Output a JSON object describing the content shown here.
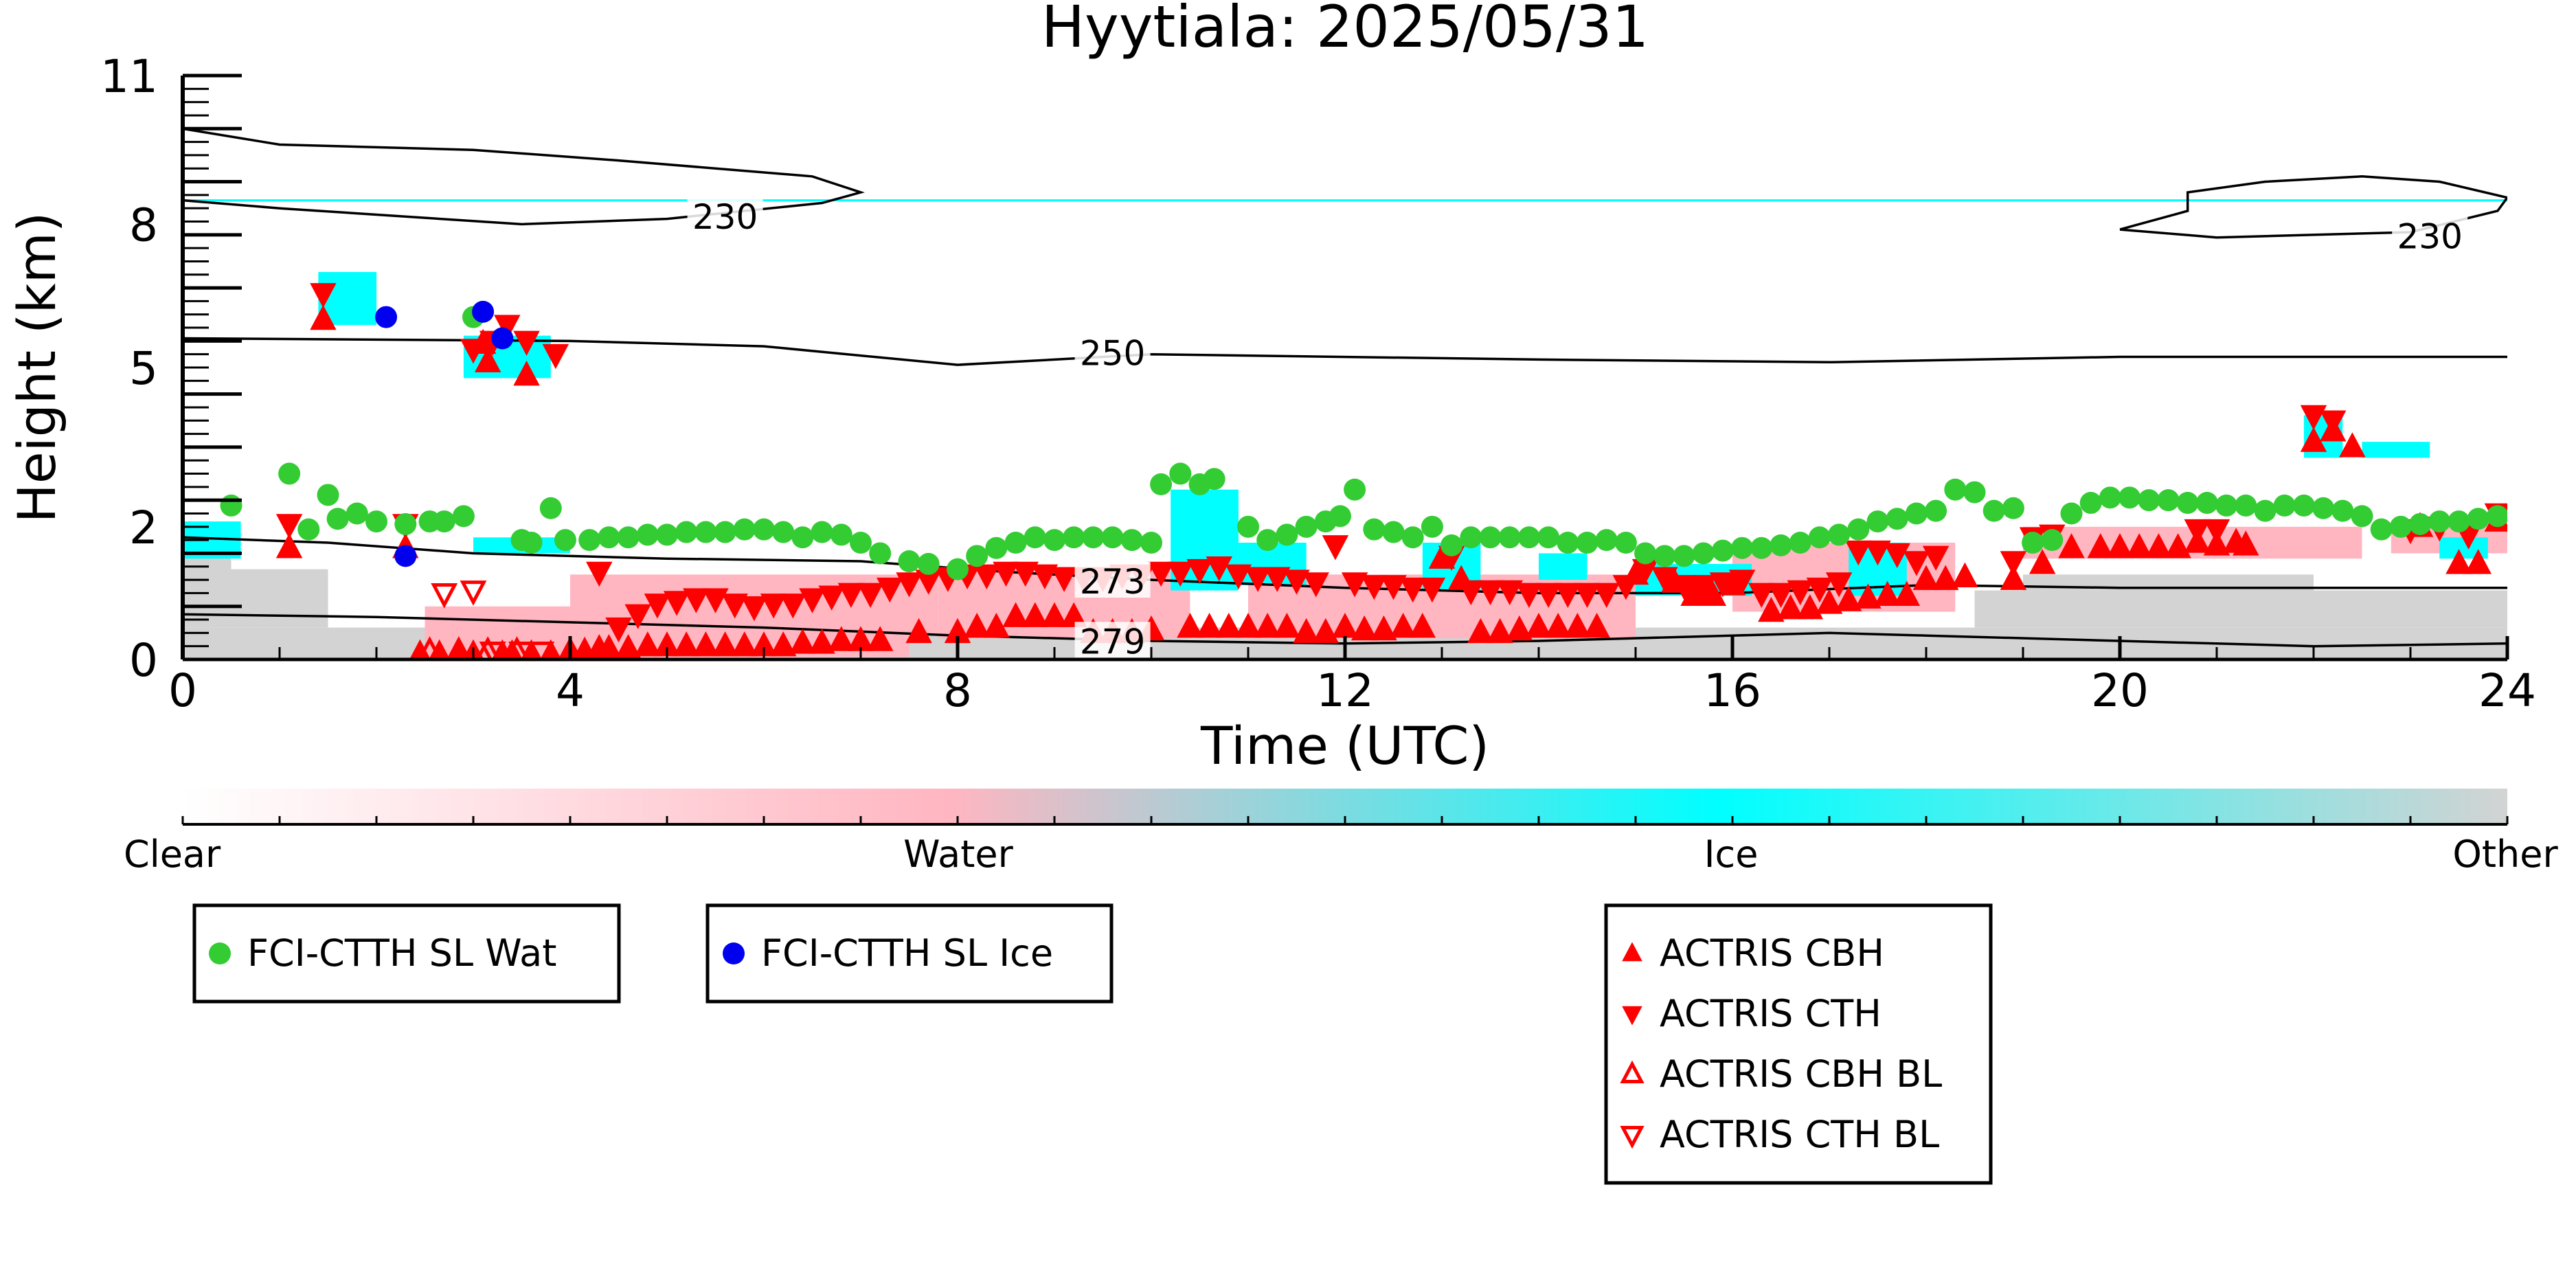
{
  "chart_data": {
    "type": "scatter",
    "title": "Hyytiala: 2025/05/31",
    "xlabel": "Time (UTC)",
    "ylabel": "Height (km)",
    "xlim": [
      0,
      24
    ],
    "ylim": [
      0,
      11
    ],
    "x_ticks": [
      0,
      4,
      8,
      12,
      16,
      20,
      24
    ],
    "y_tick_labels": [
      {
        "value": 0,
        "label": "0"
      },
      {
        "value": 2.5,
        "label": "2"
      },
      {
        "value": 5.5,
        "label": "5"
      },
      {
        "value": 8.2,
        "label": "8"
      },
      {
        "value": 11,
        "label": "11"
      }
    ],
    "colorbar": {
      "labels": [
        "Clear",
        "Water",
        "Ice",
        "Other"
      ],
      "colors": [
        "#ffffff",
        "#ffb6c1",
        "#00ffff",
        "#d3d3d3"
      ]
    },
    "series_colors": {
      "wat": "#33cc33",
      "ice": "#0000ee",
      "actris": "#ff0000",
      "contour": "#000000"
    },
    "contours": [
      {
        "label": "230",
        "label_pos": {
          "x": 5.6,
          "y": 8.32
        },
        "points": [
          [
            0,
            10.0
          ],
          [
            1,
            9.7
          ],
          [
            3,
            9.6
          ],
          [
            4.5,
            9.4
          ],
          [
            6.5,
            9.1
          ],
          [
            7,
            8.8
          ],
          [
            6.6,
            8.6
          ],
          [
            5,
            8.3
          ],
          [
            3.5,
            8.2
          ],
          [
            1,
            8.5
          ],
          [
            0,
            8.65
          ]
        ]
      },
      {
        "label": "230",
        "label_pos": {
          "x": 23.2,
          "y": 7.95
        },
        "points": [
          [
            20,
            8.1
          ],
          [
            20.7,
            8.45
          ],
          [
            20.7,
            8.8
          ],
          [
            21.5,
            9.0
          ],
          [
            22.5,
            9.1
          ],
          [
            23.3,
            9.0
          ],
          [
            24,
            8.7
          ],
          [
            23.9,
            8.45
          ],
          [
            23,
            8.05
          ],
          [
            21,
            7.95
          ],
          [
            20,
            8.1
          ]
        ]
      },
      {
        "label": "250",
        "label_pos": {
          "x": 9.6,
          "y": 5.75
        },
        "points": [
          [
            0,
            6.05
          ],
          [
            4,
            6.0
          ],
          [
            6,
            5.9
          ],
          [
            8,
            5.55
          ],
          [
            10,
            5.75
          ],
          [
            14,
            5.65
          ],
          [
            17,
            5.6
          ],
          [
            20,
            5.7
          ],
          [
            24,
            5.7
          ]
        ]
      },
      {
        "label": "273",
        "label_pos": {
          "x": 9.6,
          "y": 1.45
        },
        "points": [
          [
            0,
            2.3
          ],
          [
            1.5,
            2.2
          ],
          [
            3,
            2.0
          ],
          [
            5,
            1.9
          ],
          [
            7,
            1.85
          ],
          [
            8.5,
            1.65
          ],
          [
            10,
            1.5
          ],
          [
            12,
            1.35
          ],
          [
            14,
            1.25
          ],
          [
            16,
            1.25
          ],
          [
            18,
            1.4
          ],
          [
            20,
            1.35
          ],
          [
            22,
            1.35
          ],
          [
            24,
            1.35
          ]
        ]
      },
      {
        "label": "279",
        "label_pos": {
          "x": 9.6,
          "y": 0.32
        },
        "points": [
          [
            0,
            0.85
          ],
          [
            2,
            0.8
          ],
          [
            4,
            0.7
          ],
          [
            6,
            0.6
          ],
          [
            8,
            0.45
          ],
          [
            10,
            0.35
          ],
          [
            12,
            0.3
          ],
          [
            14,
            0.35
          ],
          [
            16,
            0.45
          ],
          [
            17,
            0.5
          ],
          [
            18,
            0.45
          ],
          [
            20,
            0.35
          ],
          [
            22,
            0.25
          ],
          [
            24,
            0.3
          ]
        ]
      }
    ],
    "legends": {
      "legend1": [
        {
          "label": "FCI-CTTH SL Wat",
          "marker": "circle",
          "color": "#33cc33"
        }
      ],
      "legend2": [
        {
          "label": "FCI-CTTH SL Ice",
          "marker": "circle",
          "color": "#0000ee"
        }
      ],
      "legend3": [
        {
          "label": "ACTRIS CBH",
          "marker": "triangle-up",
          "color": "#ff0000"
        },
        {
          "label": "ACTRIS CTH",
          "marker": "triangle-down",
          "color": "#ff0000"
        },
        {
          "label": "ACTRIS CBH BL",
          "marker": "triangle-up-open",
          "color": "#ff0000"
        },
        {
          "label": "ACTRIS CTH BL",
          "marker": "triangle-down-open",
          "color": "#ff0000"
        }
      ]
    },
    "fci_ctth_sl_wat": [
      [
        0.5,
        2.9
      ],
      [
        1.1,
        3.5
      ],
      [
        1.3,
        2.45
      ],
      [
        1.5,
        3.1
      ],
      [
        1.6,
        2.65
      ],
      [
        1.8,
        2.75
      ],
      [
        2.0,
        2.6
      ],
      [
        2.3,
        2.55
      ],
      [
        2.55,
        2.6
      ],
      [
        2.7,
        2.6
      ],
      [
        2.9,
        2.7
      ],
      [
        3.0,
        6.45
      ],
      [
        3.5,
        2.25
      ],
      [
        3.6,
        2.2
      ],
      [
        3.8,
        2.85
      ],
      [
        3.95,
        2.25
      ],
      [
        4.2,
        2.25
      ],
      [
        4.4,
        2.3
      ],
      [
        4.6,
        2.3
      ],
      [
        4.8,
        2.35
      ],
      [
        5.0,
        2.35
      ],
      [
        5.2,
        2.4
      ],
      [
        5.4,
        2.4
      ],
      [
        5.6,
        2.4
      ],
      [
        5.8,
        2.45
      ],
      [
        6.0,
        2.45
      ],
      [
        6.2,
        2.4
      ],
      [
        6.4,
        2.3
      ],
      [
        6.6,
        2.4
      ],
      [
        6.8,
        2.35
      ],
      [
        7.0,
        2.2
      ],
      [
        7.2,
        2.0
      ],
      [
        7.5,
        1.85
      ],
      [
        7.7,
        1.8
      ],
      [
        8.0,
        1.7
      ],
      [
        8.2,
        1.95
      ],
      [
        8.4,
        2.1
      ],
      [
        8.6,
        2.2
      ],
      [
        8.8,
        2.3
      ],
      [
        9.0,
        2.25
      ],
      [
        9.2,
        2.3
      ],
      [
        9.4,
        2.3
      ],
      [
        9.6,
        2.3
      ],
      [
        9.8,
        2.25
      ],
      [
        10.0,
        2.2
      ],
      [
        10.1,
        3.3
      ],
      [
        10.3,
        3.5
      ],
      [
        10.5,
        3.3
      ],
      [
        10.65,
        3.4
      ],
      [
        11.0,
        2.5
      ],
      [
        11.2,
        2.25
      ],
      [
        11.4,
        2.35
      ],
      [
        11.6,
        2.5
      ],
      [
        11.8,
        2.6
      ],
      [
        11.95,
        2.7
      ],
      [
        12.1,
        3.2
      ],
      [
        12.3,
        2.45
      ],
      [
        12.5,
        2.4
      ],
      [
        12.7,
        2.3
      ],
      [
        12.9,
        2.5
      ],
      [
        13.1,
        2.15
      ],
      [
        13.3,
        2.3
      ],
      [
        13.5,
        2.3
      ],
      [
        13.7,
        2.3
      ],
      [
        13.9,
        2.3
      ],
      [
        14.1,
        2.3
      ],
      [
        14.3,
        2.2
      ],
      [
        14.5,
        2.2
      ],
      [
        14.7,
        2.25
      ],
      [
        14.9,
        2.2
      ],
      [
        15.1,
        2.0
      ],
      [
        15.3,
        1.95
      ],
      [
        15.5,
        1.95
      ],
      [
        15.7,
        2.0
      ],
      [
        15.9,
        2.05
      ],
      [
        16.1,
        2.1
      ],
      [
        16.3,
        2.1
      ],
      [
        16.5,
        2.15
      ],
      [
        16.7,
        2.2
      ],
      [
        16.9,
        2.3
      ],
      [
        17.1,
        2.35
      ],
      [
        17.3,
        2.45
      ],
      [
        17.5,
        2.6
      ],
      [
        17.7,
        2.65
      ],
      [
        17.9,
        2.75
      ],
      [
        18.1,
        2.8
      ],
      [
        18.3,
        3.2
      ],
      [
        18.5,
        3.15
      ],
      [
        18.7,
        2.8
      ],
      [
        18.9,
        2.85
      ],
      [
        19.1,
        2.2
      ],
      [
        19.3,
        2.25
      ],
      [
        19.5,
        2.75
      ],
      [
        19.7,
        2.95
      ],
      [
        19.9,
        3.05
      ],
      [
        20.1,
        3.05
      ],
      [
        20.3,
        3.0
      ],
      [
        20.5,
        3.0
      ],
      [
        20.7,
        2.95
      ],
      [
        20.9,
        2.95
      ],
      [
        21.1,
        2.9
      ],
      [
        21.3,
        2.9
      ],
      [
        21.5,
        2.8
      ],
      [
        21.7,
        2.9
      ],
      [
        21.9,
        2.9
      ],
      [
        22.1,
        2.85
      ],
      [
        22.3,
        2.8
      ],
      [
        22.5,
        2.7
      ],
      [
        22.7,
        2.45
      ],
      [
        22.9,
        2.5
      ],
      [
        23.1,
        2.55
      ],
      [
        23.3,
        2.6
      ],
      [
        23.5,
        2.6
      ],
      [
        23.7,
        2.65
      ],
      [
        23.9,
        2.7
      ]
    ],
    "fci_ctth_sl_ice": [
      [
        2.1,
        6.45
      ],
      [
        2.3,
        1.95
      ],
      [
        3.1,
        6.55
      ],
      [
        3.3,
        6.05
      ]
    ],
    "actris_cbh": [
      [
        1.1,
        2.1
      ],
      [
        1.45,
        6.4
      ],
      [
        2.3,
        2.1
      ],
      [
        2.45,
        0.1
      ],
      [
        2.65,
        0.1
      ],
      [
        2.85,
        0.1
      ],
      [
        3.0,
        0.1
      ],
      [
        3.1,
        5.95
      ],
      [
        3.15,
        5.6
      ],
      [
        3.3,
        0.1
      ],
      [
        3.4,
        0.1
      ],
      [
        3.55,
        5.35
      ],
      [
        3.6,
        0.1
      ],
      [
        3.8,
        0.1
      ],
      [
        4.0,
        0.15
      ],
      [
        4.15,
        0.15
      ],
      [
        4.3,
        0.2
      ],
      [
        4.4,
        0.2
      ],
      [
        4.6,
        0.2
      ],
      [
        4.8,
        0.25
      ],
      [
        5.0,
        0.25
      ],
      [
        5.2,
        0.25
      ],
      [
        5.4,
        0.25
      ],
      [
        5.6,
        0.25
      ],
      [
        5.8,
        0.25
      ],
      [
        6.0,
        0.25
      ],
      [
        6.2,
        0.25
      ],
      [
        6.4,
        0.3
      ],
      [
        6.6,
        0.3
      ],
      [
        6.8,
        0.35
      ],
      [
        7.0,
        0.35
      ],
      [
        7.2,
        0.35
      ],
      [
        7.6,
        0.5
      ],
      [
        8.0,
        0.5
      ],
      [
        8.2,
        0.6
      ],
      [
        8.4,
        0.6
      ],
      [
        8.6,
        0.8
      ],
      [
        8.8,
        0.8
      ],
      [
        9.0,
        0.8
      ],
      [
        9.2,
        0.8
      ],
      [
        9.4,
        0.5
      ],
      [
        9.6,
        0.5
      ],
      [
        9.8,
        0.5
      ],
      [
        10.0,
        0.55
      ],
      [
        10.4,
        0.6
      ],
      [
        10.6,
        0.6
      ],
      [
        10.8,
        0.6
      ],
      [
        11.0,
        0.6
      ],
      [
        11.2,
        0.6
      ],
      [
        11.4,
        0.6
      ],
      [
        11.6,
        0.5
      ],
      [
        11.8,
        0.5
      ],
      [
        12.0,
        0.6
      ],
      [
        12.2,
        0.55
      ],
      [
        12.4,
        0.55
      ],
      [
        12.6,
        0.6
      ],
      [
        12.8,
        0.6
      ],
      [
        13.0,
        1.9
      ],
      [
        13.2,
        1.5
      ],
      [
        13.4,
        0.5
      ],
      [
        13.6,
        0.5
      ],
      [
        13.8,
        0.55
      ],
      [
        14.0,
        0.6
      ],
      [
        14.2,
        0.6
      ],
      [
        14.4,
        0.6
      ],
      [
        14.6,
        0.6
      ],
      [
        15.0,
        1.6
      ],
      [
        15.4,
        1.45
      ],
      [
        15.6,
        1.2
      ],
      [
        15.8,
        1.2
      ],
      [
        16.0,
        1.4
      ],
      [
        16.4,
        0.9
      ],
      [
        16.6,
        0.95
      ],
      [
        16.8,
        0.95
      ],
      [
        17.0,
        1.05
      ],
      [
        17.2,
        1.1
      ],
      [
        17.4,
        1.15
      ],
      [
        17.6,
        1.2
      ],
      [
        17.8,
        1.2
      ],
      [
        18.0,
        1.5
      ],
      [
        18.2,
        1.5
      ],
      [
        18.4,
        1.55
      ],
      [
        18.9,
        1.5
      ],
      [
        19.2,
        1.8
      ],
      [
        19.5,
        2.1
      ],
      [
        19.8,
        2.1
      ],
      [
        20.0,
        2.1
      ],
      [
        20.2,
        2.1
      ],
      [
        20.4,
        2.1
      ],
      [
        20.6,
        2.1
      ],
      [
        20.8,
        2.2
      ],
      [
        21.0,
        2.15
      ],
      [
        21.2,
        2.2
      ],
      [
        21.3,
        2.15
      ],
      [
        22.0,
        4.1
      ],
      [
        22.2,
        4.3
      ],
      [
        22.4,
        4.0
      ],
      [
        23.1,
        2.5
      ],
      [
        23.5,
        1.8
      ],
      [
        23.7,
        1.8
      ],
      [
        23.9,
        2.6
      ]
    ],
    "actris_cth": [
      [
        1.1,
        2.55
      ],
      [
        1.45,
        6.9
      ],
      [
        2.3,
        2.55
      ],
      [
        3.0,
        5.85
      ],
      [
        3.2,
        6.0
      ],
      [
        3.35,
        6.3
      ],
      [
        3.55,
        6.0
      ],
      [
        3.85,
        5.75
      ],
      [
        4.3,
        1.65
      ],
      [
        4.5,
        0.6
      ],
      [
        4.7,
        0.85
      ],
      [
        4.9,
        1.05
      ],
      [
        5.1,
        1.1
      ],
      [
        5.3,
        1.15
      ],
      [
        5.5,
        1.15
      ],
      [
        5.7,
        1.05
      ],
      [
        5.9,
        1.0
      ],
      [
        6.1,
        1.05
      ],
      [
        6.3,
        1.05
      ],
      [
        6.5,
        1.15
      ],
      [
        6.7,
        1.2
      ],
      [
        6.9,
        1.25
      ],
      [
        7.1,
        1.25
      ],
      [
        7.3,
        1.35
      ],
      [
        7.5,
        1.45
      ],
      [
        7.7,
        1.5
      ],
      [
        7.9,
        1.55
      ],
      [
        8.1,
        1.6
      ],
      [
        8.3,
        1.6
      ],
      [
        8.5,
        1.65
      ],
      [
        8.7,
        1.65
      ],
      [
        8.9,
        1.6
      ],
      [
        9.1,
        1.55
      ],
      [
        9.3,
        1.55
      ],
      [
        9.5,
        1.55
      ],
      [
        9.7,
        1.6
      ],
      [
        9.9,
        1.6
      ],
      [
        10.1,
        1.65
      ],
      [
        10.3,
        1.65
      ],
      [
        10.5,
        1.7
      ],
      [
        10.7,
        1.75
      ],
      [
        10.9,
        1.6
      ],
      [
        11.1,
        1.55
      ],
      [
        11.3,
        1.55
      ],
      [
        11.5,
        1.5
      ],
      [
        11.7,
        1.45
      ],
      [
        11.9,
        2.15
      ],
      [
        12.1,
        1.45
      ],
      [
        12.3,
        1.4
      ],
      [
        12.5,
        1.4
      ],
      [
        12.7,
        1.35
      ],
      [
        12.9,
        1.35
      ],
      [
        13.1,
        1.95
      ],
      [
        13.3,
        1.3
      ],
      [
        13.5,
        1.3
      ],
      [
        13.7,
        1.3
      ],
      [
        13.9,
        1.25
      ],
      [
        14.1,
        1.25
      ],
      [
        14.3,
        1.25
      ],
      [
        14.5,
        1.25
      ],
      [
        14.7,
        1.25
      ],
      [
        14.9,
        1.4
      ],
      [
        15.1,
        1.7
      ],
      [
        15.3,
        1.55
      ],
      [
        15.5,
        1.4
      ],
      [
        15.7,
        1.4
      ],
      [
        15.9,
        1.45
      ],
      [
        16.1,
        1.5
      ],
      [
        16.3,
        1.25
      ],
      [
        16.5,
        1.25
      ],
      [
        16.7,
        1.3
      ],
      [
        16.9,
        1.35
      ],
      [
        17.1,
        1.45
      ],
      [
        17.3,
        2.05
      ],
      [
        17.5,
        2.05
      ],
      [
        17.7,
        2.0
      ],
      [
        17.9,
        1.85
      ],
      [
        18.1,
        1.95
      ],
      [
        18.9,
        1.85
      ],
      [
        19.1,
        2.3
      ],
      [
        19.3,
        2.35
      ],
      [
        20.8,
        2.45
      ],
      [
        21.0,
        2.45
      ],
      [
        22.0,
        4.6
      ],
      [
        22.2,
        4.5
      ],
      [
        23.0,
        2.45
      ],
      [
        23.3,
        2.5
      ],
      [
        23.6,
        2.35
      ],
      [
        23.9,
        2.75
      ]
    ],
    "actris_cbh_bl": [
      [
        2.55,
        0.15
      ],
      [
        2.85,
        0.15
      ],
      [
        3.15,
        0.15
      ],
      [
        3.45,
        0.15
      ]
    ],
    "actris_cth_bl": [
      [
        2.7,
        1.25
      ],
      [
        3.0,
        1.3
      ],
      [
        3.2,
        0.15
      ],
      [
        3.5,
        0.15
      ],
      [
        3.7,
        0.15
      ]
    ]
  }
}
